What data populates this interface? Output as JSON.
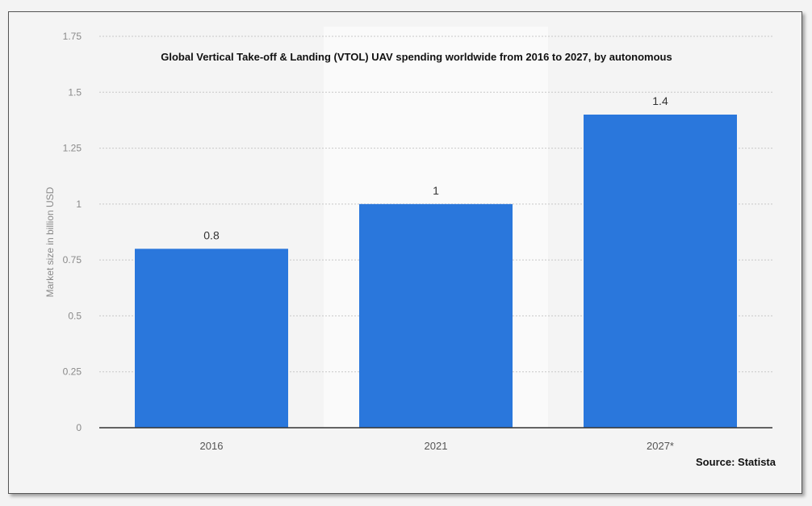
{
  "chart_data": {
    "type": "bar",
    "title": "Global Vertical Take-off & Landing (VTOL) UAV spending worldwide from 2016 to 2027, by autonomous",
    "categories": [
      "2016",
      "2021",
      "2027*"
    ],
    "values": [
      0.8,
      1,
      1.4
    ],
    "value_labels": [
      "0.8",
      "1",
      "1.4"
    ],
    "ylabel": "Market size in billion USD",
    "xlabel": "",
    "ylim": [
      0,
      1.75
    ],
    "yticks": [
      0,
      0.25,
      0.5,
      0.75,
      1,
      1.25,
      1.5,
      1.75
    ],
    "ytick_labels": [
      "0",
      "0.25",
      "0.5",
      "0.75",
      "1",
      "1.25",
      "1.5",
      "1.75"
    ],
    "grid": true,
    "bar_color": "#2a77dc",
    "highlight_band_color": "#fafafa"
  },
  "source": "Source: Statista"
}
